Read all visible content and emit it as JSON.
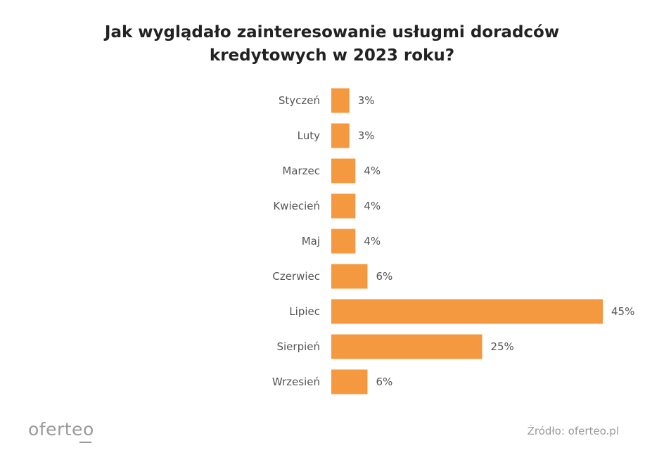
{
  "chart_data": {
    "type": "bar",
    "orientation": "horizontal",
    "title_lines": [
      "Jak wyglądało zainteresowanie usługmi doradców",
      "kredytowych w 2023 roku?"
    ],
    "categories": [
      "Styczeń",
      "Luty",
      "Marzec",
      "Kwiecień",
      "Maj",
      "Czerwiec",
      "Lipiec",
      "Sierpień",
      "Wrzesień"
    ],
    "values": [
      3,
      3,
      4,
      4,
      4,
      6,
      45,
      25,
      6
    ],
    "value_labels": [
      "3%",
      "3%",
      "4%",
      "4%",
      "4%",
      "6%",
      "45%",
      "25%",
      "6%"
    ],
    "xlim": [
      0,
      45
    ],
    "grid": false,
    "legend": "none",
    "bar_color": "#f4993f"
  },
  "footer": {
    "logo_text": "oferteo",
    "source": "Źródło: oferteo.pl"
  }
}
